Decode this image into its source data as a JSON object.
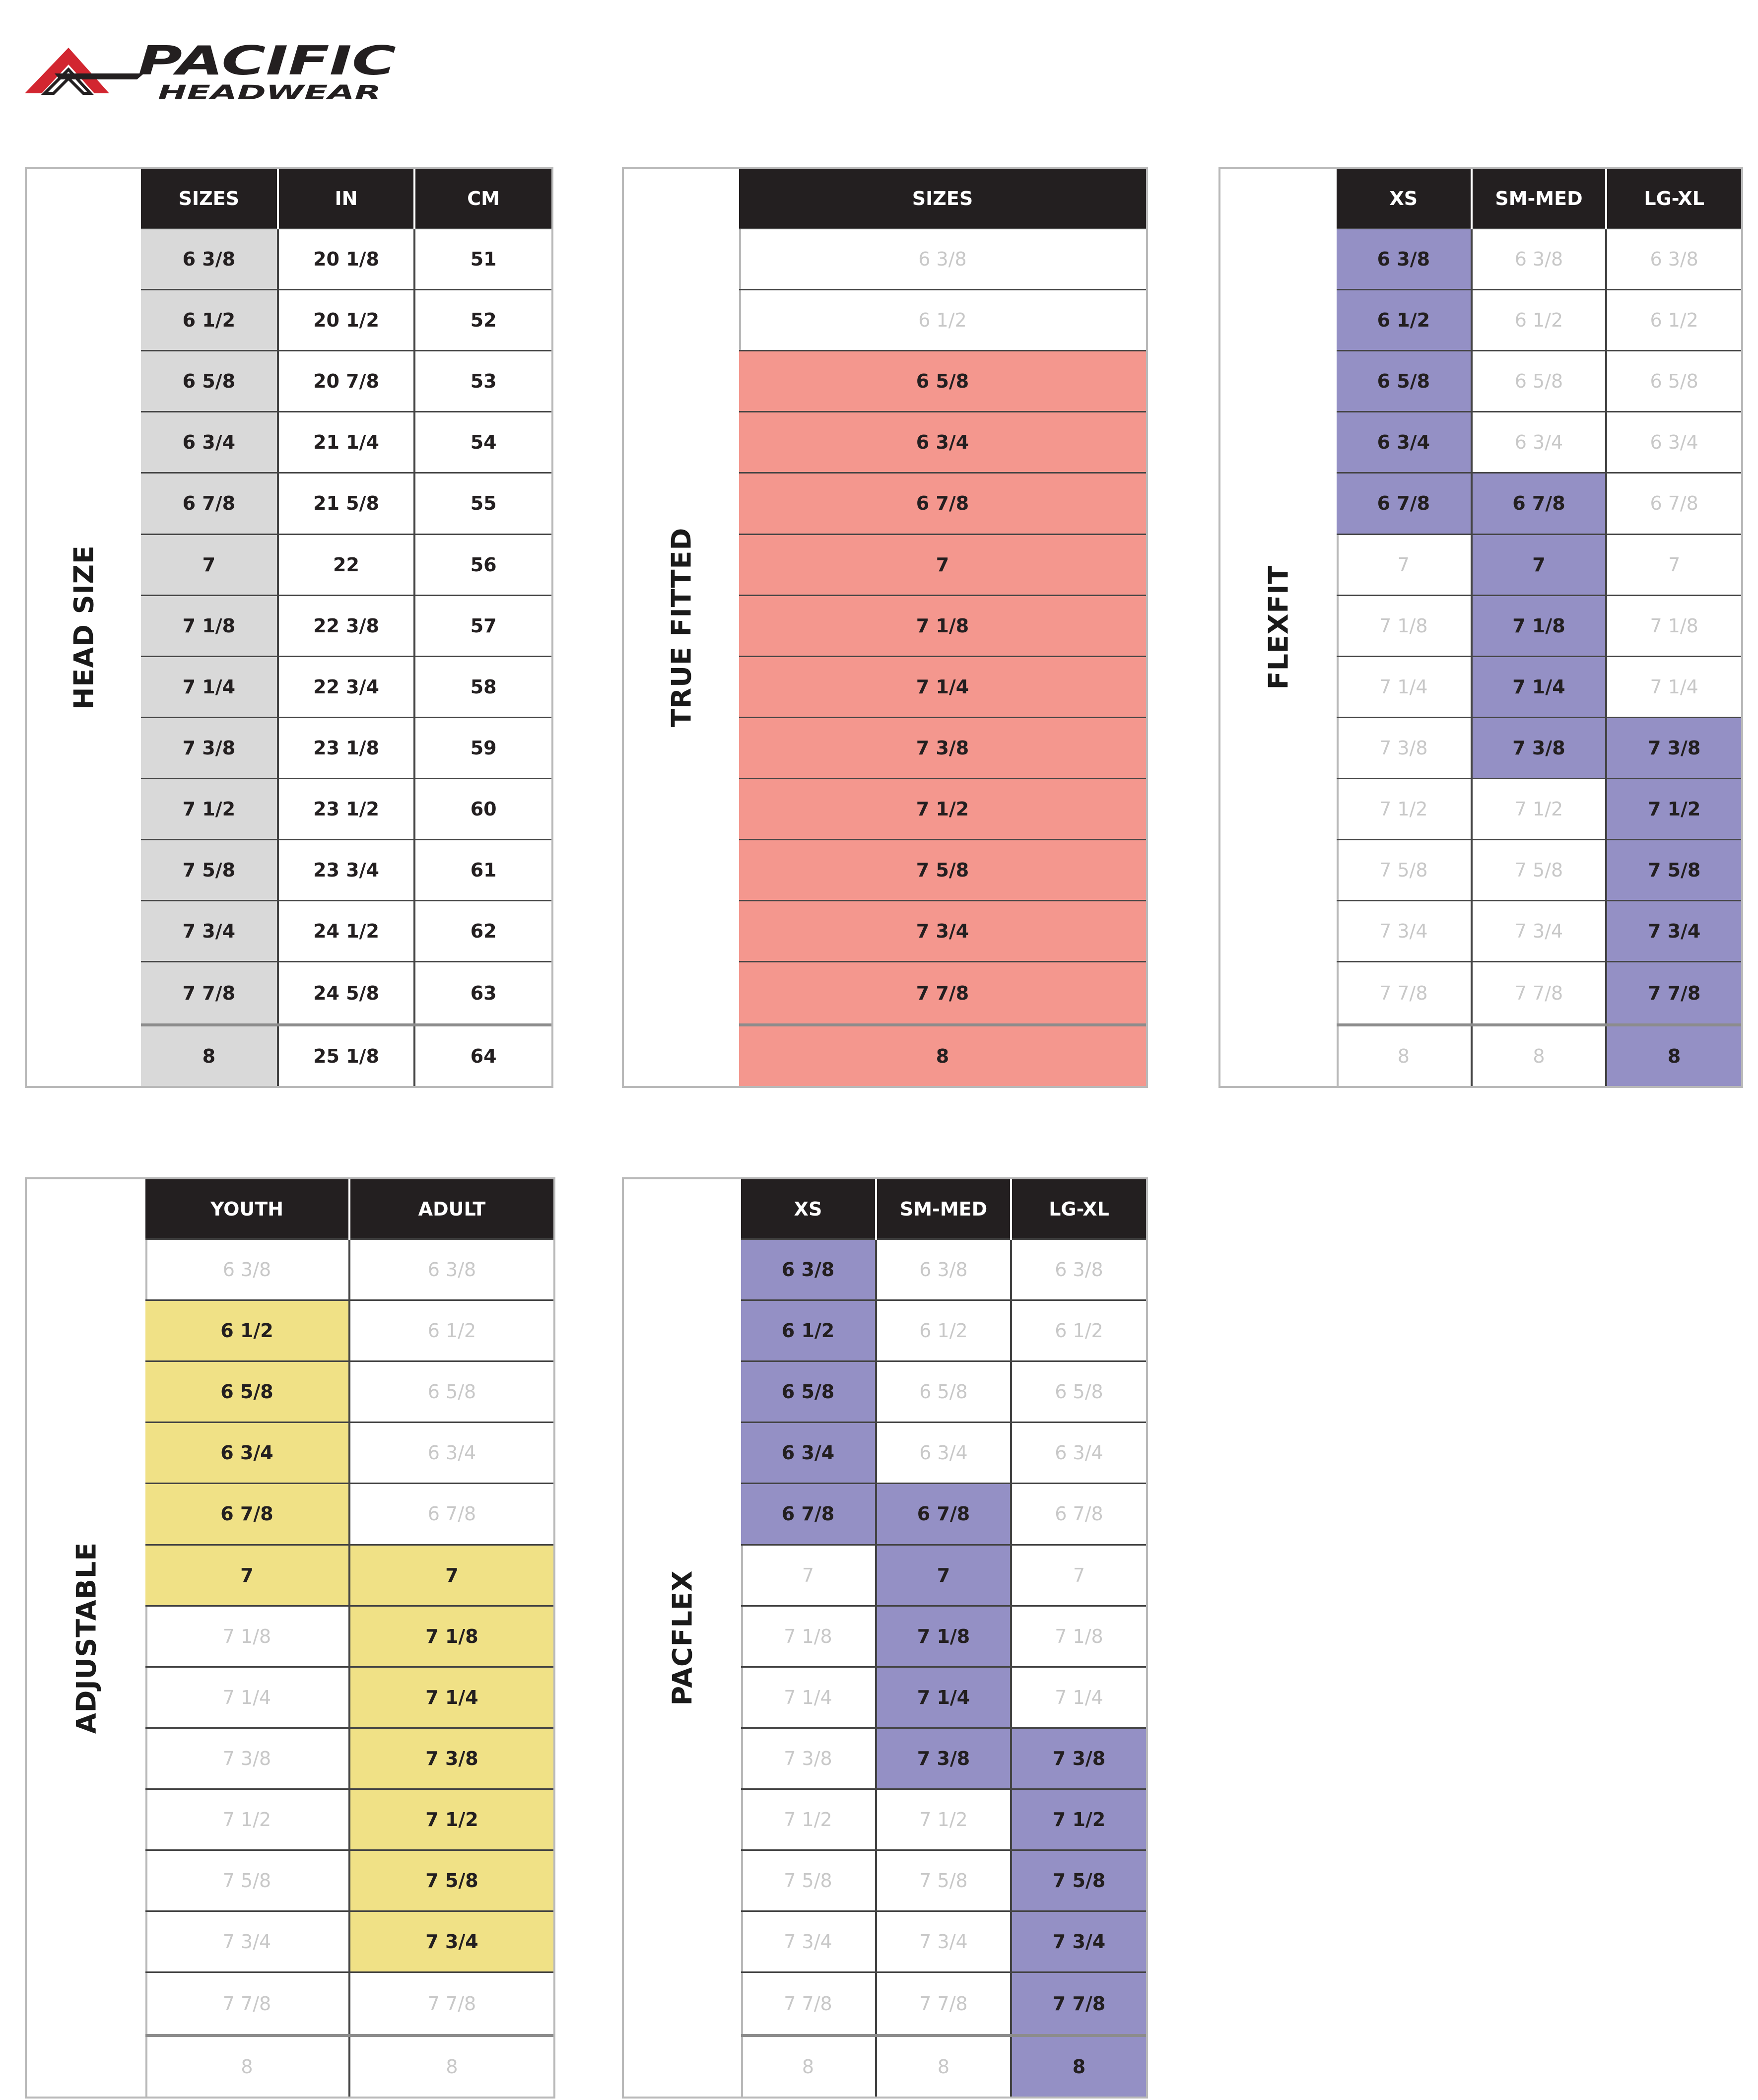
{
  "brand": {
    "logo_text": "PACIFIC",
    "logo_subtext": "HEADWEAR",
    "logo_colors": {
      "red": "#d22630",
      "dark": "#231f20"
    }
  },
  "colors": {
    "header_bg": "#231f20",
    "gray": "#d9d9d9",
    "red": "#f4978e",
    "blue": "#9490c5",
    "yellow": "#f0e186",
    "inactive_text": "#c8c8c8"
  },
  "sizes": [
    "6 3/8",
    "6 1/2",
    "6 5/8",
    "6 3/4",
    "6 7/8",
    "7",
    "7 1/8",
    "7 1/4",
    "7 3/8",
    "7 1/2",
    "7 5/8",
    "7 3/4",
    "7 7/8",
    "8"
  ],
  "charts": [
    {
      "id": "head-size",
      "label": "HEAD SIZE",
      "columns": [
        {
          "header": "SIZES",
          "cells": [
            "6 3/8",
            "6 1/2",
            "6 5/8",
            "6 3/4",
            "6 7/8",
            "7",
            "7 1/8",
            "7 1/4",
            "7 3/8",
            "7 1/2",
            "7 5/8",
            "7 3/4",
            "7 7/8",
            "8"
          ],
          "highlight": [
            0,
            13
          ],
          "color": "gray"
        },
        {
          "header": "IN",
          "cells": [
            "20 1/8",
            "20 1/2",
            "20 7/8",
            "21 1/4",
            "21 5/8",
            "22",
            "22 3/8",
            "22 3/4",
            "23 1/8",
            "23 1/2",
            "23 3/4",
            "24 1/2",
            "24 5/8",
            "25 1/8"
          ],
          "highlight": [
            0,
            13
          ],
          "color": "none"
        },
        {
          "header": "CM",
          "cells": [
            "51",
            "52",
            "53",
            "54",
            "55",
            "56",
            "57",
            "58",
            "59",
            "60",
            "61",
            "62",
            "63",
            "64"
          ],
          "highlight": [
            0,
            13
          ],
          "color": "none"
        }
      ]
    },
    {
      "id": "true-fitted",
      "label": "TRUE FITTED",
      "columns": [
        {
          "header": "SIZES",
          "cells": [
            "6 3/8",
            "6 1/2",
            "6 5/8",
            "6 3/4",
            "6 7/8",
            "7",
            "7 1/8",
            "7 1/4",
            "7 3/8",
            "7 1/2",
            "7 5/8",
            "7 3/4",
            "7 7/8",
            "8"
          ],
          "highlight": [
            2,
            13
          ],
          "color": "red"
        }
      ]
    },
    {
      "id": "flexfit",
      "label": "FLEXFIT",
      "columns": [
        {
          "header": "XS",
          "cells": [
            "6 3/8",
            "6 1/2",
            "6 5/8",
            "6 3/4",
            "6 7/8",
            "7",
            "7 1/8",
            "7 1/4",
            "7 3/8",
            "7 1/2",
            "7 5/8",
            "7 3/4",
            "7 7/8",
            "8"
          ],
          "highlight": [
            0,
            4
          ],
          "color": "blue"
        },
        {
          "header": "SM-MED",
          "cells": [
            "6 3/8",
            "6 1/2",
            "6 5/8",
            "6 3/4",
            "6 7/8",
            "7",
            "7 1/8",
            "7 1/4",
            "7 3/8",
            "7 1/2",
            "7 5/8",
            "7 3/4",
            "7 7/8",
            "8"
          ],
          "highlight": [
            4,
            8
          ],
          "color": "blue"
        },
        {
          "header": "LG-XL",
          "cells": [
            "6 3/8",
            "6 1/2",
            "6 5/8",
            "6 3/4",
            "6 7/8",
            "7",
            "7 1/8",
            "7 1/4",
            "7 3/8",
            "7 1/2",
            "7 5/8",
            "7 3/4",
            "7 7/8",
            "8"
          ],
          "highlight": [
            8,
            13
          ],
          "color": "blue"
        }
      ]
    },
    {
      "id": "adjustable",
      "label": "ADJUSTABLE",
      "columns": [
        {
          "header": "YOUTH",
          "cells": [
            "6 3/8",
            "6 1/2",
            "6 5/8",
            "6 3/4",
            "6 7/8",
            "7",
            "7 1/8",
            "7 1/4",
            "7 3/8",
            "7 1/2",
            "7 5/8",
            "7 3/4",
            "7 7/8",
            "8"
          ],
          "highlight": [
            1,
            5
          ],
          "color": "yellow"
        },
        {
          "header": "ADULT",
          "cells": [
            "6 3/8",
            "6 1/2",
            "6 5/8",
            "6 3/4",
            "6 7/8",
            "7",
            "7 1/8",
            "7 1/4",
            "7 3/8",
            "7 1/2",
            "7 5/8",
            "7 3/4",
            "7 7/8",
            "8"
          ],
          "highlight": [
            5,
            11
          ],
          "color": "yellow"
        }
      ]
    },
    {
      "id": "pacflex",
      "label": "PACFLEX",
      "columns": [
        {
          "header": "XS",
          "cells": [
            "6 3/8",
            "6 1/2",
            "6 5/8",
            "6 3/4",
            "6 7/8",
            "7",
            "7 1/8",
            "7 1/4",
            "7 3/8",
            "7 1/2",
            "7 5/8",
            "7 3/4",
            "7 7/8",
            "8"
          ],
          "highlight": [
            0,
            4
          ],
          "color": "blue"
        },
        {
          "header": "SM-MED",
          "cells": [
            "6 3/8",
            "6 1/2",
            "6 5/8",
            "6 3/4",
            "6 7/8",
            "7",
            "7 1/8",
            "7 1/4",
            "7 3/8",
            "7 1/2",
            "7 5/8",
            "7 3/4",
            "7 7/8",
            "8"
          ],
          "highlight": [
            4,
            8
          ],
          "color": "blue"
        },
        {
          "header": "LG-XL",
          "cells": [
            "6 3/8",
            "6 1/2",
            "6 5/8",
            "6 3/4",
            "6 7/8",
            "7",
            "7 1/8",
            "7 1/4",
            "7 3/8",
            "7 1/2",
            "7 5/8",
            "7 3/4",
            "7 7/8",
            "8"
          ],
          "highlight": [
            8,
            13
          ],
          "color": "blue"
        }
      ]
    }
  ]
}
